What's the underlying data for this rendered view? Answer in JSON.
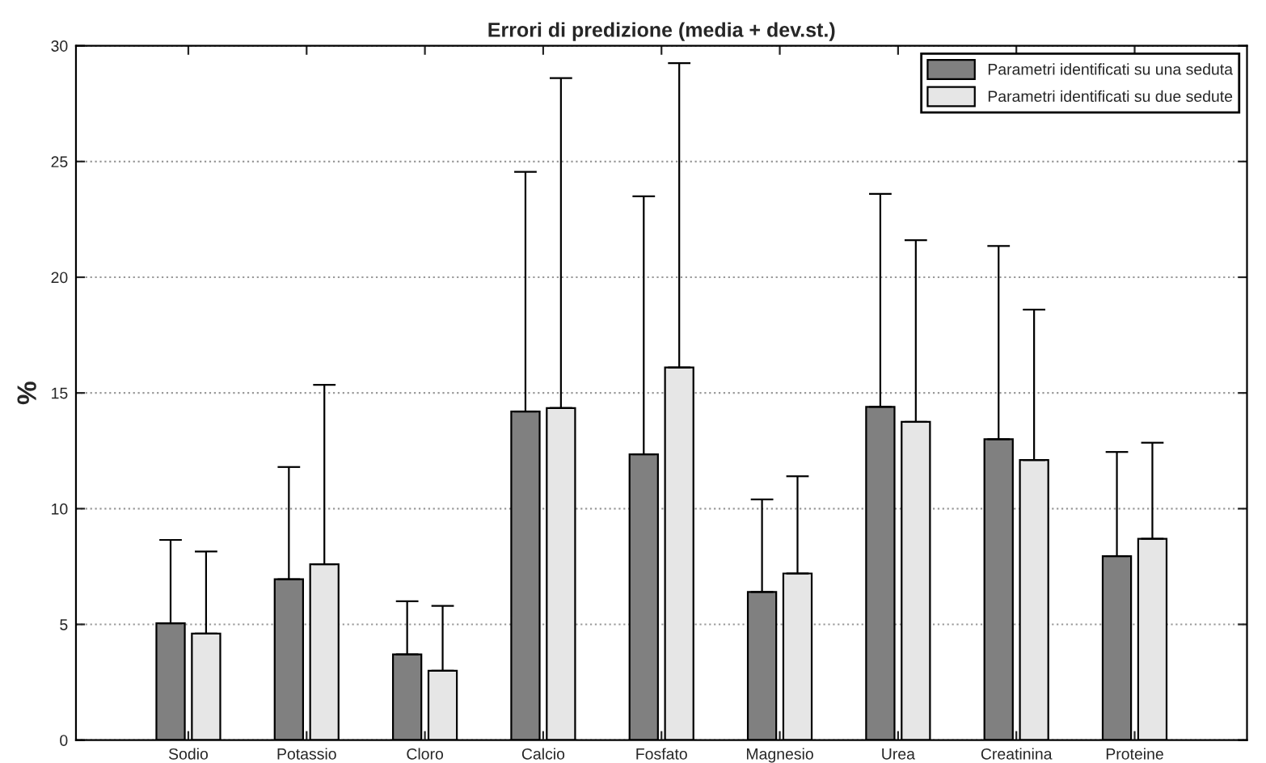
{
  "chart_data": {
    "type": "bar",
    "title": "Errori di predizione (media + dev.st.)",
    "ylabel": "%",
    "categories": [
      "Sodio",
      "Potassio",
      "Cloro",
      "Calcio",
      "Fosfato",
      "Magnesio",
      "Urea",
      "Creatinina",
      "Proteine"
    ],
    "series": [
      {
        "name": "Parametri identificati su una seduta",
        "color": "#808080",
        "values": [
          5.05,
          6.95,
          3.7,
          14.2,
          12.35,
          6.4,
          14.4,
          13.0,
          7.95
        ],
        "errors": [
          [
            5.05,
            8.65
          ],
          [
            6.95,
            11.8
          ],
          [
            3.7,
            6.0
          ],
          [
            14.2,
            24.55
          ],
          [
            12.35,
            23.5
          ],
          [
            6.4,
            10.4
          ],
          [
            14.4,
            23.6
          ],
          [
            13.0,
            21.35
          ],
          [
            7.95,
            12.45
          ]
        ]
      },
      {
        "name": "Parametri identificati su due sedute",
        "color": "#e6e6e6",
        "values": [
          4.6,
          7.6,
          3.0,
          14.35,
          16.1,
          7.2,
          13.75,
          12.1,
          8.7
        ],
        "errors": [
          [
            4.6,
            8.15
          ],
          [
            7.6,
            15.35
          ],
          [
            3.0,
            5.8
          ],
          [
            14.35,
            28.6
          ],
          [
            16.1,
            29.25
          ],
          [
            7.2,
            11.4
          ],
          [
            13.75,
            21.6
          ],
          [
            12.1,
            18.6
          ],
          [
            8.7,
            12.85
          ]
        ]
      }
    ],
    "ylim": [
      0,
      30
    ],
    "yticks": [
      0,
      5,
      10,
      15,
      20,
      25,
      30
    ],
    "grid": "y",
    "legend": "top right"
  }
}
